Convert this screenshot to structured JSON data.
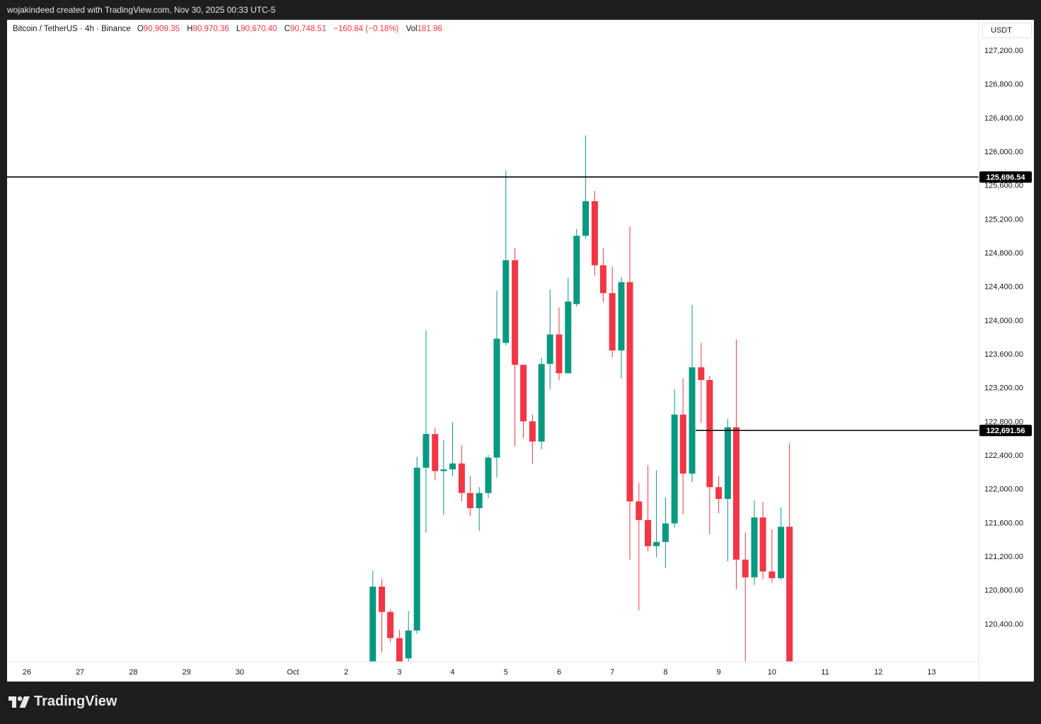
{
  "header": {
    "credit": "wojakindeed created with TradingView.com, Nov 30, 2025 00:33 UTC-5"
  },
  "legend": {
    "symbol": "Bitcoin / TetherUS · 4h · Binance",
    "o_label": "O",
    "o_value": "90,909.35",
    "h_label": "H",
    "h_value": "90,970.36",
    "l_label": "L",
    "l_value": "90,670.40",
    "c_label": "C",
    "c_value": "90,748.51",
    "change": "−160.84 (−0.18%)",
    "vol_label": "Vol",
    "vol_value": "181.96"
  },
  "price_axis": {
    "currency": "USDT"
  },
  "footer": {
    "brand": "TradingView"
  },
  "colors": {
    "up": "#089981",
    "down": "#f23645",
    "line": "#000000"
  },
  "chart_data": {
    "type": "candlestick",
    "x_axis": {
      "ticks": [
        "26",
        "27",
        "28",
        "29",
        "30",
        "Oct",
        "2",
        "3",
        "4",
        "5",
        "6",
        "7",
        "8",
        "9",
        "10",
        "11",
        "12",
        "13"
      ]
    },
    "y_axis": {
      "ticks": [
        "120,400.00",
        "120,800.00",
        "121,200.00",
        "121,600.00",
        "122,000.00",
        "122,400.00",
        "122,800.00",
        "123,200.00",
        "123,600.00",
        "124,000.00",
        "124,400.00",
        "124,800.00",
        "125,200.00",
        "125,600.00",
        "126,000.00",
        "126,400.00",
        "126,800.00",
        "127,200.00"
      ],
      "range": [
        119950,
        127560
      ]
    },
    "horizontal_lines": [
      {
        "price": 125696.54,
        "label": "125,696.54"
      },
      {
        "price": 122691.56,
        "label": "122,691.56"
      }
    ],
    "candles": [
      {
        "t": 2.5,
        "o": 119900,
        "h": 121030,
        "l": 119900,
        "c": 120840
      },
      {
        "t": 2.67,
        "o": 120840,
        "h": 120930,
        "l": 120060,
        "c": 120540
      },
      {
        "t": 2.83,
        "o": 120540,
        "h": 120570,
        "l": 120180,
        "c": 120230
      },
      {
        "t": 3.0,
        "o": 120230,
        "h": 120330,
        "l": 119900,
        "c": 119900
      },
      {
        "t": 3.17,
        "o": 119990,
        "h": 120550,
        "l": 119900,
        "c": 120320
      },
      {
        "t": 3.33,
        "o": 120320,
        "h": 122380,
        "l": 120280,
        "c": 122250
      },
      {
        "t": 3.5,
        "o": 122250,
        "h": 123880,
        "l": 121480,
        "c": 122650
      },
      {
        "t": 3.67,
        "o": 122650,
        "h": 122720,
        "l": 122100,
        "c": 122210
      },
      {
        "t": 3.83,
        "o": 122210,
        "h": 122580,
        "l": 121690,
        "c": 122230
      },
      {
        "t": 4.0,
        "o": 122230,
        "h": 122790,
        "l": 122150,
        "c": 122300
      },
      {
        "t": 4.17,
        "o": 122300,
        "h": 122520,
        "l": 121850,
        "c": 121950
      },
      {
        "t": 4.33,
        "o": 121950,
        "h": 122150,
        "l": 121680,
        "c": 121770
      },
      {
        "t": 4.5,
        "o": 121770,
        "h": 122020,
        "l": 121500,
        "c": 121950
      },
      {
        "t": 4.67,
        "o": 121950,
        "h": 122400,
        "l": 121890,
        "c": 122370
      },
      {
        "t": 4.83,
        "o": 122370,
        "h": 124350,
        "l": 122130,
        "c": 123780
      },
      {
        "t": 5.0,
        "o": 123730,
        "h": 125770,
        "l": 123700,
        "c": 124710
      },
      {
        "t": 5.17,
        "o": 124710,
        "h": 124850,
        "l": 122500,
        "c": 123470
      },
      {
        "t": 5.33,
        "o": 123470,
        "h": 123470,
        "l": 122600,
        "c": 122800
      },
      {
        "t": 5.5,
        "o": 122800,
        "h": 122880,
        "l": 122300,
        "c": 122560
      },
      {
        "t": 5.67,
        "o": 122560,
        "h": 123550,
        "l": 122470,
        "c": 123480
      },
      {
        "t": 5.83,
        "o": 123480,
        "h": 124360,
        "l": 123180,
        "c": 123830
      },
      {
        "t": 6.0,
        "o": 123830,
        "h": 124150,
        "l": 123290,
        "c": 123370
      },
      {
        "t": 6.17,
        "o": 123370,
        "h": 124500,
        "l": 123370,
        "c": 124220
      },
      {
        "t": 6.33,
        "o": 124190,
        "h": 125080,
        "l": 124160,
        "c": 125000
      },
      {
        "t": 6.5,
        "o": 125000,
        "h": 126190,
        "l": 124970,
        "c": 125410
      },
      {
        "t": 6.67,
        "o": 125410,
        "h": 125530,
        "l": 124530,
        "c": 124650
      },
      {
        "t": 6.83,
        "o": 124650,
        "h": 124850,
        "l": 124210,
        "c": 124320
      },
      {
        "t": 7.0,
        "o": 124320,
        "h": 124630,
        "l": 123560,
        "c": 123640
      },
      {
        "t": 7.17,
        "o": 123640,
        "h": 124510,
        "l": 123310,
        "c": 124450
      },
      {
        "t": 7.33,
        "o": 124450,
        "h": 125110,
        "l": 121160,
        "c": 121850
      },
      {
        "t": 7.5,
        "o": 121850,
        "h": 122070,
        "l": 120560,
        "c": 121630
      },
      {
        "t": 7.67,
        "o": 121630,
        "h": 122280,
        "l": 121260,
        "c": 121320
      },
      {
        "t": 7.83,
        "o": 121320,
        "h": 122220,
        "l": 121190,
        "c": 121370
      },
      {
        "t": 8.0,
        "o": 121370,
        "h": 121900,
        "l": 121060,
        "c": 121590
      },
      {
        "t": 8.17,
        "o": 121590,
        "h": 123180,
        "l": 121540,
        "c": 122880
      },
      {
        "t": 8.33,
        "o": 122880,
        "h": 123310,
        "l": 121700,
        "c": 122180
      },
      {
        "t": 8.5,
        "o": 122180,
        "h": 124180,
        "l": 122080,
        "c": 123440
      },
      {
        "t": 8.67,
        "o": 123440,
        "h": 123730,
        "l": 122780,
        "c": 123290
      },
      {
        "t": 8.83,
        "o": 123290,
        "h": 123340,
        "l": 121460,
        "c": 122020
      },
      {
        "t": 9.0,
        "o": 122020,
        "h": 122150,
        "l": 121710,
        "c": 121880
      },
      {
        "t": 9.17,
        "o": 121880,
        "h": 122830,
        "l": 121140,
        "c": 122730
      },
      {
        "t": 9.33,
        "o": 122730,
        "h": 123770,
        "l": 120810,
        "c": 121160
      },
      {
        "t": 9.5,
        "o": 121160,
        "h": 121480,
        "l": 119900,
        "c": 120950
      },
      {
        "t": 9.67,
        "o": 120950,
        "h": 121860,
        "l": 120860,
        "c": 121660
      },
      {
        "t": 9.83,
        "o": 121660,
        "h": 121840,
        "l": 120930,
        "c": 121020
      },
      {
        "t": 10.0,
        "o": 121020,
        "h": 121520,
        "l": 120890,
        "c": 120940
      },
      {
        "t": 10.17,
        "o": 120940,
        "h": 121780,
        "l": 120920,
        "c": 121550
      },
      {
        "t": 10.33,
        "o": 121550,
        "h": 122540,
        "l": 119900,
        "c": 119900
      }
    ]
  }
}
